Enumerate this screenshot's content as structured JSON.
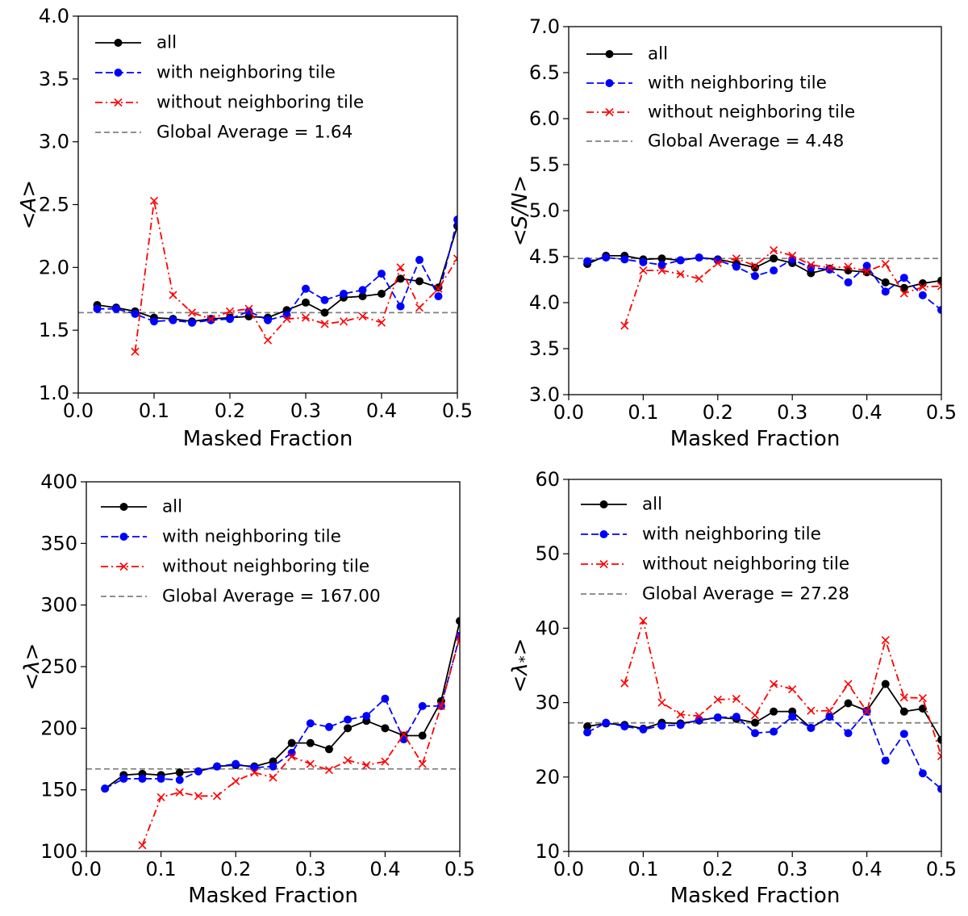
{
  "chart_data": [
    {
      "type": "line",
      "xlabel": "Masked Fraction",
      "ylabel": "<A>",
      "xlim": [
        0.0,
        0.5
      ],
      "ylim": [
        1.0,
        4.0
      ],
      "xticks": [
        "0.0",
        "0.1",
        "0.2",
        "0.3",
        "0.4",
        "0.5"
      ],
      "yticks": [
        "1.0",
        "1.5",
        "2.0",
        "2.5",
        "3.0",
        "3.5",
        "4.0"
      ],
      "legend_position": "top-left",
      "series": [
        {
          "name": "all",
          "color": "#000000",
          "linestyle": "solid",
          "marker": "circle",
          "x": [
            0.025,
            0.05,
            0.075,
            0.1,
            0.125,
            0.15,
            0.175,
            0.2,
            0.225,
            0.25,
            0.275,
            0.3,
            0.325,
            0.35,
            0.375,
            0.4,
            0.425,
            0.45,
            0.475,
            0.5
          ],
          "y": [
            1.7,
            1.68,
            1.65,
            1.6,
            1.59,
            1.57,
            1.59,
            1.6,
            1.61,
            1.6,
            1.66,
            1.72,
            1.64,
            1.76,
            1.77,
            1.79,
            1.91,
            1.89,
            1.84,
            2.33
          ]
        },
        {
          "name": "with neighboring tile",
          "color": "#0000ff",
          "linestyle": "dashed",
          "marker": "circle",
          "x": [
            0.025,
            0.05,
            0.075,
            0.1,
            0.125,
            0.15,
            0.175,
            0.2,
            0.225,
            0.25,
            0.275,
            0.3,
            0.325,
            0.35,
            0.375,
            0.4,
            0.425,
            0.45,
            0.475,
            0.5
          ],
          "y": [
            1.67,
            1.67,
            1.63,
            1.57,
            1.58,
            1.56,
            1.58,
            1.59,
            1.65,
            1.58,
            1.62,
            1.83,
            1.74,
            1.79,
            1.82,
            1.95,
            1.69,
            2.06,
            1.77,
            2.38
          ]
        },
        {
          "name": "without neighboring tile",
          "color": "#ff0000",
          "linestyle": "dashdot",
          "marker": "x",
          "x": [
            0.075,
            0.1,
            0.125,
            0.15,
            0.175,
            0.2,
            0.225,
            0.25,
            0.275,
            0.3,
            0.325,
            0.35,
            0.375,
            0.4,
            0.425,
            0.45,
            0.475,
            0.5
          ],
          "y": [
            1.33,
            2.53,
            1.78,
            1.64,
            1.59,
            1.65,
            1.67,
            1.42,
            1.59,
            1.6,
            1.55,
            1.57,
            1.61,
            1.56,
            2.0,
            1.68,
            1.83,
            2.07
          ]
        }
      ],
      "reference_line": {
        "name": "Global Average = 1.64",
        "value": 1.64,
        "color": "#808080",
        "linestyle": "dashed"
      }
    },
    {
      "type": "line",
      "xlabel": "Masked Fraction",
      "ylabel": "<S/N>",
      "xlim": [
        0.0,
        0.5
      ],
      "ylim": [
        3.0,
        7.0
      ],
      "xticks": [
        "0.0",
        "0.1",
        "0.2",
        "0.3",
        "0.4",
        "0.5"
      ],
      "yticks": [
        "3.0",
        "3.5",
        "4.0",
        "4.5",
        "5.0",
        "5.5",
        "6.0",
        "6.5",
        "7.0"
      ],
      "legend_position": "top-left",
      "series": [
        {
          "name": "all",
          "color": "#000000",
          "linestyle": "solid",
          "marker": "circle",
          "x": [
            0.025,
            0.05,
            0.075,
            0.1,
            0.125,
            0.15,
            0.175,
            0.2,
            0.225,
            0.25,
            0.275,
            0.3,
            0.325,
            0.35,
            0.375,
            0.4,
            0.425,
            0.45,
            0.475,
            0.5
          ],
          "y": [
            4.42,
            4.51,
            4.51,
            4.47,
            4.48,
            4.46,
            4.49,
            4.47,
            4.43,
            4.38,
            4.48,
            4.43,
            4.32,
            4.37,
            4.35,
            4.33,
            4.22,
            4.16,
            4.21,
            4.24
          ]
        },
        {
          "name": "with neighboring tile",
          "color": "#0000ff",
          "linestyle": "dashed",
          "marker": "circle",
          "x": [
            0.025,
            0.05,
            0.075,
            0.1,
            0.125,
            0.15,
            0.175,
            0.2,
            0.225,
            0.25,
            0.275,
            0.3,
            0.325,
            0.35,
            0.375,
            0.4,
            0.425,
            0.45,
            0.475,
            0.5
          ],
          "y": [
            4.45,
            4.49,
            4.47,
            4.44,
            4.41,
            4.46,
            4.49,
            4.46,
            4.39,
            4.29,
            4.35,
            4.47,
            4.38,
            4.36,
            4.22,
            4.4,
            4.12,
            4.27,
            4.08,
            3.92
          ]
        },
        {
          "name": "without neighboring tile",
          "color": "#ff0000",
          "linestyle": "dashdot",
          "marker": "x",
          "x": [
            0.075,
            0.1,
            0.125,
            0.15,
            0.175,
            0.2,
            0.225,
            0.25,
            0.275,
            0.3,
            0.325,
            0.35,
            0.375,
            0.4,
            0.425,
            0.45,
            0.475,
            0.5
          ],
          "y": [
            3.75,
            4.35,
            4.35,
            4.31,
            4.26,
            4.43,
            4.48,
            4.4,
            4.57,
            4.51,
            4.41,
            4.38,
            4.39,
            4.34,
            4.42,
            4.1,
            4.17,
            4.18
          ]
        }
      ],
      "reference_line": {
        "name": "Global Average = 4.48",
        "value": 4.48,
        "color": "#808080",
        "linestyle": "dashed"
      }
    },
    {
      "type": "line",
      "xlabel": "Masked Fraction",
      "ylabel": "<λ>",
      "xlim": [
        0.0,
        0.5
      ],
      "ylim": [
        100,
        400
      ],
      "xticks": [
        "0.0",
        "0.1",
        "0.2",
        "0.3",
        "0.4",
        "0.5"
      ],
      "yticks": [
        "100",
        "150",
        "200",
        "250",
        "300",
        "350",
        "400"
      ],
      "legend_position": "top-left",
      "series": [
        {
          "name": "all",
          "color": "#000000",
          "linestyle": "solid",
          "marker": "circle",
          "x": [
            0.025,
            0.05,
            0.075,
            0.1,
            0.125,
            0.15,
            0.175,
            0.2,
            0.225,
            0.25,
            0.275,
            0.3,
            0.325,
            0.35,
            0.375,
            0.4,
            0.425,
            0.45,
            0.475,
            0.5
          ],
          "y": [
            151,
            162,
            163,
            162,
            164,
            165,
            169,
            170,
            169,
            173,
            188,
            188,
            183,
            200,
            206,
            200,
            194,
            194,
            222,
            287
          ]
        },
        {
          "name": "with neighboring tile",
          "color": "#0000ff",
          "linestyle": "dashed",
          "marker": "circle",
          "x": [
            0.025,
            0.05,
            0.075,
            0.1,
            0.125,
            0.15,
            0.175,
            0.2,
            0.225,
            0.25,
            0.275,
            0.3,
            0.325,
            0.35,
            0.375,
            0.4,
            0.425,
            0.45,
            0.475,
            0.5
          ],
          "y": [
            151,
            159,
            159,
            159,
            158,
            165,
            169,
            171,
            168,
            169,
            180,
            204,
            201,
            207,
            210,
            224,
            191,
            218,
            218,
            275
          ]
        },
        {
          "name": "without neighboring tile",
          "color": "#ff0000",
          "linestyle": "dashdot",
          "marker": "x",
          "x": [
            0.075,
            0.1,
            0.125,
            0.15,
            0.175,
            0.2,
            0.225,
            0.25,
            0.275,
            0.3,
            0.325,
            0.35,
            0.375,
            0.4,
            0.425,
            0.45,
            0.475,
            0.5
          ],
          "y": [
            105,
            144,
            148,
            145,
            145,
            157,
            164,
            160,
            177,
            171,
            166,
            174,
            170,
            173,
            195,
            171,
            218,
            274
          ]
        }
      ],
      "reference_line": {
        "name": "Global Average = 167.00",
        "value": 167.0,
        "color": "#808080",
        "linestyle": "dashed"
      }
    },
    {
      "type": "line",
      "xlabel": "Masked Fraction",
      "ylabel": "<λ*>",
      "xlim": [
        0.0,
        0.5
      ],
      "ylim": [
        10,
        60
      ],
      "xticks": [
        "0.0",
        "0.1",
        "0.2",
        "0.3",
        "0.4",
        "0.5"
      ],
      "yticks": [
        "10",
        "20",
        "30",
        "40",
        "50",
        "60"
      ],
      "legend_position": "top-left",
      "series": [
        {
          "name": "all",
          "color": "#000000",
          "linestyle": "solid",
          "marker": "circle",
          "x": [
            0.025,
            0.05,
            0.075,
            0.1,
            0.125,
            0.15,
            0.175,
            0.2,
            0.225,
            0.25,
            0.275,
            0.3,
            0.325,
            0.35,
            0.375,
            0.4,
            0.425,
            0.45,
            0.475,
            0.5
          ],
          "y": [
            26.8,
            27.2,
            27.0,
            26.5,
            27.3,
            27.2,
            27.6,
            28.0,
            27.8,
            27.3,
            28.8,
            28.8,
            26.6,
            28.1,
            29.9,
            28.9,
            32.5,
            28.8,
            29.2,
            25.0
          ]
        },
        {
          "name": "with neighboring tile",
          "color": "#0000ff",
          "linestyle": "dashed",
          "marker": "circle",
          "x": [
            0.025,
            0.05,
            0.075,
            0.1,
            0.125,
            0.15,
            0.175,
            0.2,
            0.225,
            0.25,
            0.275,
            0.3,
            0.325,
            0.35,
            0.375,
            0.4,
            0.425,
            0.45,
            0.475,
            0.5
          ],
          "y": [
            26.0,
            27.3,
            26.8,
            26.4,
            26.9,
            27.0,
            27.7,
            28.0,
            28.1,
            25.9,
            26.1,
            28.1,
            26.6,
            28.1,
            25.9,
            28.8,
            22.2,
            25.8,
            20.5,
            18.4
          ]
        },
        {
          "name": "without neighboring tile",
          "color": "#ff0000",
          "linestyle": "dashdot",
          "marker": "x",
          "x": [
            0.075,
            0.1,
            0.125,
            0.15,
            0.175,
            0.2,
            0.225,
            0.25,
            0.275,
            0.3,
            0.325,
            0.35,
            0.375,
            0.4,
            0.425,
            0.45,
            0.475,
            0.5
          ],
          "y": [
            32.6,
            41.0,
            30.0,
            28.4,
            28.2,
            30.4,
            30.5,
            28.3,
            32.5,
            31.8,
            28.9,
            28.9,
            32.5,
            28.8,
            38.4,
            30.7,
            30.6,
            22.8
          ]
        }
      ],
      "reference_line": {
        "name": "Global Average = 27.28",
        "value": 27.28,
        "color": "#808080",
        "linestyle": "dashed"
      }
    }
  ]
}
